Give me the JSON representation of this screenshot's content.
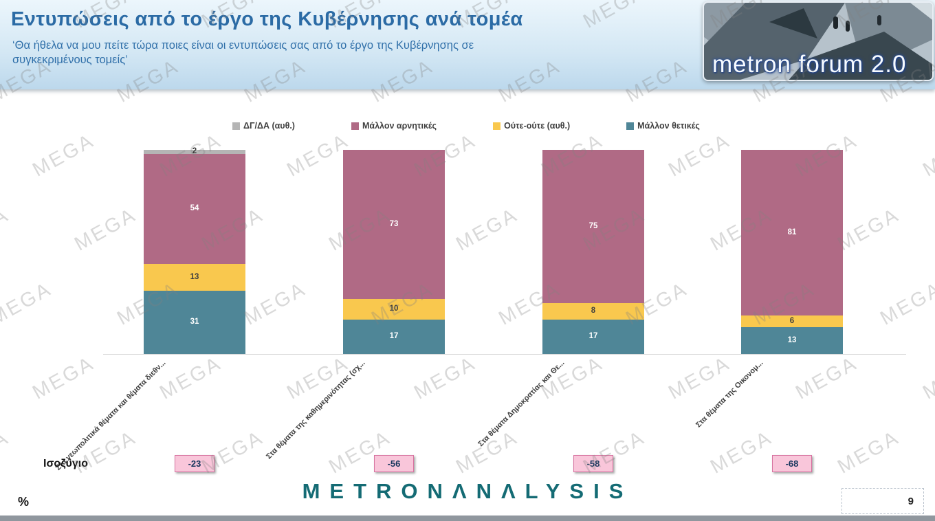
{
  "header": {
    "title": "Εντυπώσεις από το έργο της Κυβέρνησης ανά τομέα",
    "subtitle_line1": "‘Θα ήθελα να μου πείτε τώρα ποιες είναι οι εντυπώσεις σας από το έργο της Κυβέρνησης σε",
    "subtitle_line2": "συγκεκριμένους τομείς’"
  },
  "logo": {
    "text": "metron forum 2.0"
  },
  "watermark": {
    "text": "MEGA"
  },
  "chart_data": {
    "type": "bar",
    "stacked": true,
    "title": "Εντυπώσεις από το έργο της Κυβέρνησης ανά τομέα",
    "ylim": [
      0,
      100
    ],
    "legend_position": "top",
    "value_labels": true,
    "categories": [
      "Στα γεωπολιτικά θέματα και θέματα διεθν...",
      "Στα θέματα της καθημερινότητας (σχ...",
      "Στα θέματα Δημοκρατίας και Θε...",
      "Στα θέματα της Οικονομ..."
    ],
    "series": [
      {
        "name": "ΔΓ/ΔΑ (αυθ.)",
        "color": "#b5b5b5",
        "text_color": "#3a3a3a",
        "values": [
          2,
          0,
          0,
          0
        ]
      },
      {
        "name": "Μάλλον αρνητικές",
        "color": "#b06a85",
        "text_color": "#ffffff",
        "values": [
          54,
          73,
          75,
          81
        ]
      },
      {
        "name": "Ούτε-ούτε (αυθ.)",
        "color": "#f9c84e",
        "text_color": "#3e3e3e",
        "values": [
          13,
          10,
          8,
          6
        ]
      },
      {
        "name": "Μάλλον θετικές",
        "color": "#4f8697",
        "text_color": "#ffffff",
        "values": [
          31,
          17,
          17,
          13
        ]
      }
    ]
  },
  "balance": {
    "label": "Ισοζύγιο",
    "values": [
      "-23",
      "-56",
      "-58",
      "-68"
    ]
  },
  "footer": {
    "percent_label": "%",
    "brand": "METRONΛNΛLYSIS",
    "page_number": "9"
  }
}
